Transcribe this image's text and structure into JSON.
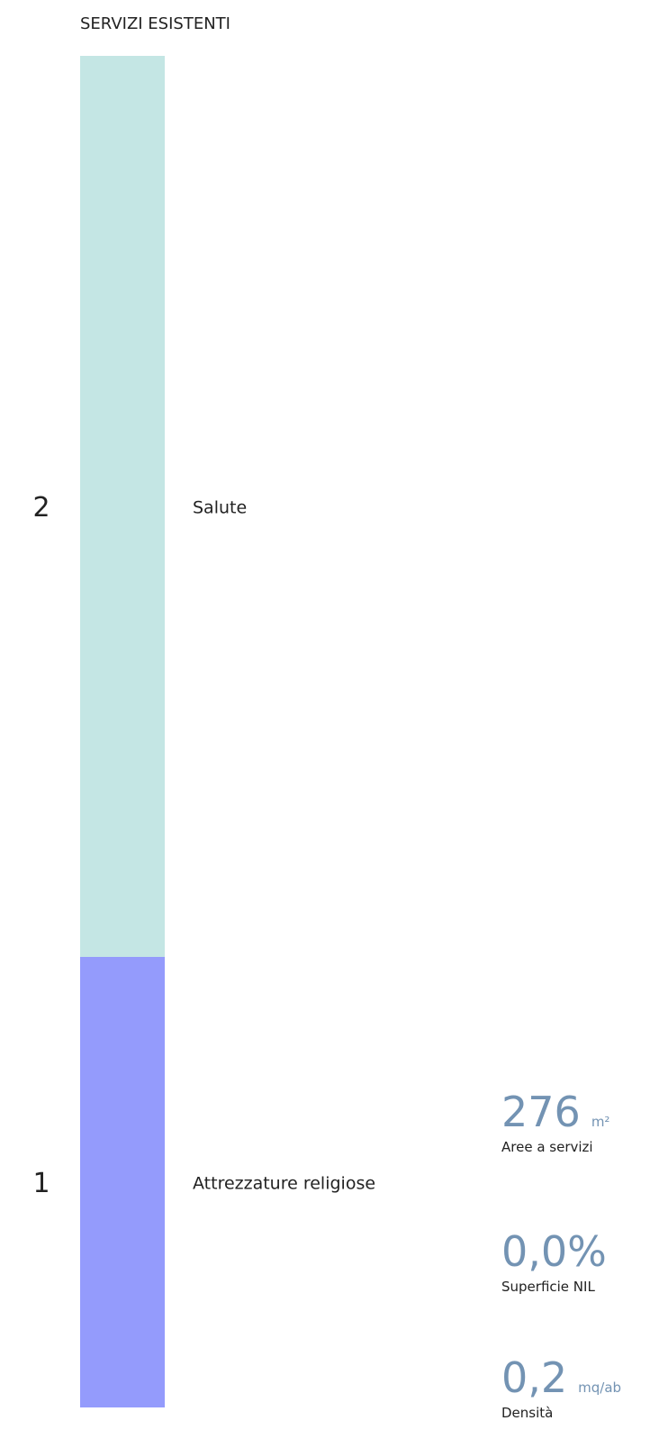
{
  "chart_data": {
    "type": "bar",
    "title": "SERVIZI ESISTENTI",
    "categories": [
      "Salute",
      "Attrezzature religiose"
    ],
    "values": [
      2,
      1
    ],
    "colors": [
      "#c4e6e4",
      "#949bfc"
    ]
  },
  "stats": [
    {
      "value": "276",
      "unit": "m²",
      "label": "Aree a servizi"
    },
    {
      "value": "0,0%",
      "label": "Superficie NIL"
    },
    {
      "value": "0,2",
      "unit": "mq/ab",
      "label": "Densità"
    }
  ]
}
